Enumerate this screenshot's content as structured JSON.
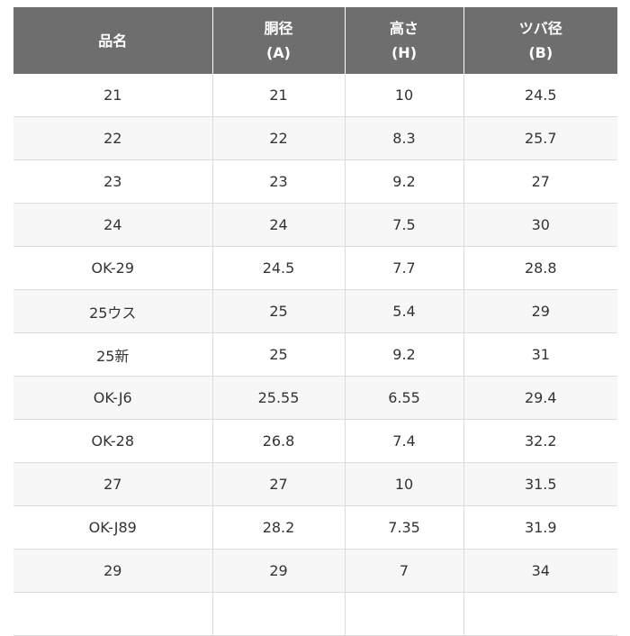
{
  "table": {
    "headers": [
      {
        "line1": "品名",
        "line2": ""
      },
      {
        "line1": "胴径",
        "line2": "(A)"
      },
      {
        "line1": "高さ",
        "line2": "(H)"
      },
      {
        "line1": "ツバ径",
        "line2": "(B)"
      }
    ],
    "rows": [
      [
        "21",
        "21",
        "10",
        "24.5"
      ],
      [
        "22",
        "22",
        "8.3",
        "25.7"
      ],
      [
        "23",
        "23",
        "9.2",
        "27"
      ],
      [
        "24",
        "24",
        "7.5",
        "30"
      ],
      [
        "OK-29",
        "24.5",
        "7.7",
        "28.8"
      ],
      [
        "25ウス",
        "25",
        "5.4",
        "29"
      ],
      [
        "25新",
        "25",
        "9.2",
        "31"
      ],
      [
        "OK-J6",
        "25.55",
        "6.55",
        "29.4"
      ],
      [
        "OK-28",
        "26.8",
        "7.4",
        "32.2"
      ],
      [
        "27",
        "27",
        "10",
        "31.5"
      ],
      [
        "OK-J89",
        "28.2",
        "7.35",
        "31.9"
      ],
      [
        "29",
        "29",
        "7",
        "34"
      ],
      [
        "",
        "",
        "",
        ""
      ]
    ]
  },
  "colors": {
    "header_bg": "#6e6e6e",
    "header_text": "#ffffff",
    "row_alt_bg": "#f7f7f7",
    "border": "#dcdcdc",
    "cell_text": "#333333"
  }
}
